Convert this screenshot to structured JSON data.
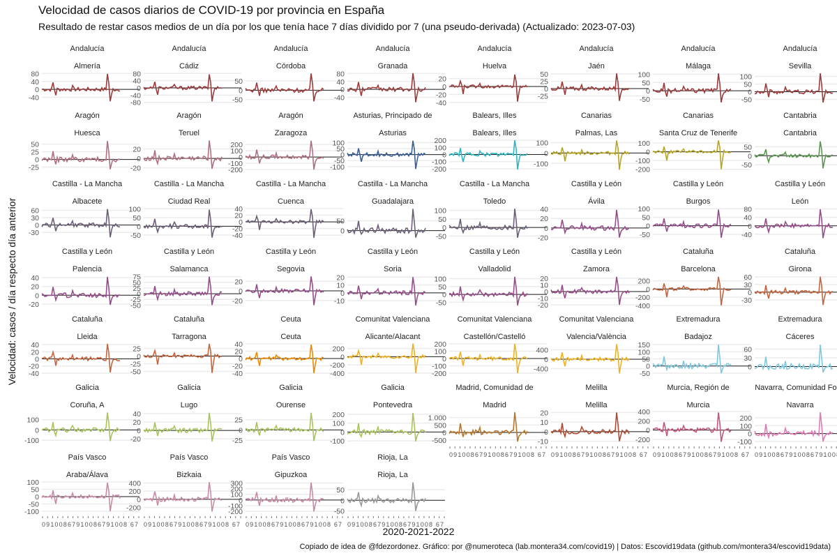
{
  "chart_data": {
    "type": "line",
    "title": "Velocidad de casos diarios de COVID-19 por provincia en España",
    "subtitle": "Resultado de restar casos medios de un día por los que tenía hace 7 días dividido por 7 (una pseudo-derivada) (Actualizado: 2023-07-03)",
    "xlabel": "2020-2021-2022",
    "ylabel": "Velocidad: casos / día respecto día anterior",
    "caption": "Copiado de idea de @fdezordonez. Gráfico: por @numeroteca (lab.montera34.com/covid19) | Datos: Escovid19data (github.com/montera34/escovid19data)",
    "x_tick_text": "09100867910086791008 67",
    "grid": true,
    "legend": "none",
    "panels": [
      {
        "region": "Andalucía",
        "province": "Almería",
        "color": "#9e3a3a",
        "yticks": [
          "80",
          "40",
          "0",
          "-40"
        ],
        "ylim": [
          -70,
          85
        ],
        "peak": 78,
        "trough": -60
      },
      {
        "region": "Andalucía",
        "province": "Cádiz",
        "color": "#9e3a3a",
        "yticks": [
          "80",
          "40",
          "0",
          "-40",
          "-80"
        ],
        "ylim": [
          -85,
          85
        ],
        "peak": 75,
        "trough": -75
      },
      {
        "region": "Andalucía",
        "province": "Córdoba",
        "color": "#9e3a3a",
        "yticks": [
          "50",
          "0",
          "-50"
        ],
        "ylim": [
          -70,
          95
        ],
        "peak": 90,
        "trough": -60
      },
      {
        "region": "Andalucía",
        "province": "Granada",
        "color": "#9e3a3a",
        "yticks": [
          "80",
          "40",
          "0",
          "-40"
        ],
        "ylim": [
          -70,
          85
        ],
        "peak": 82,
        "trough": -65
      },
      {
        "region": "Andalucía",
        "province": "Huelva",
        "color": "#9e3a3a",
        "yticks": [
          "20",
          "0",
          "-20",
          "-40"
        ],
        "ylim": [
          -42,
          35
        ],
        "peak": 30,
        "trough": -38
      },
      {
        "region": "Andalucía",
        "province": "Jaén",
        "color": "#9e3a3a",
        "yticks": [
          "50",
          "25",
          "0",
          "-25"
        ],
        "ylim": [
          -50,
          55
        ],
        "peak": 52,
        "trough": -42
      },
      {
        "region": "Andalucía",
        "province": "Málaga",
        "color": "#9e3a3a",
        "yticks": [
          "100",
          "50",
          "0",
          "-50"
        ],
        "ylim": [
          -75,
          110
        ],
        "peak": 105,
        "trough": -70
      },
      {
        "region": "Andalucía",
        "province": "Sevilla",
        "color": "#9e3a3a",
        "yticks": [
          "100",
          "50",
          "0",
          "-50"
        ],
        "ylim": [
          -75,
          125
        ],
        "peak": 120,
        "trough": -70
      },
      {
        "region": "Aragón",
        "province": "Huesca",
        "color": "#b07080",
        "yticks": [
          "50",
          "25",
          "0",
          "-25"
        ],
        "ylim": [
          -35,
          65
        ],
        "peak": 60,
        "trough": -32
      },
      {
        "region": "Aragón",
        "province": "Teruel",
        "color": "#b07080",
        "yticks": [
          "20",
          "0",
          "-20"
        ],
        "ylim": [
          -25,
          40
        ],
        "peak": 38,
        "trough": -22
      },
      {
        "region": "Aragón",
        "province": "Zaragoza",
        "color": "#b07080",
        "yticks": [
          "200",
          "100",
          "0",
          "-100",
          "-200"
        ],
        "ylim": [
          -210,
          280
        ],
        "peak": 260,
        "trough": -200
      },
      {
        "region": "Asturias, Principado de",
        "province": "Asturias",
        "color": "#3a5f99",
        "yticks": [
          "100",
          "50",
          "0",
          "-50",
          "-100"
        ],
        "ylim": [
          -130,
          125
        ],
        "peak": 115,
        "trough": -120
      },
      {
        "region": "Balears, Illes",
        "province": "Balears, Illes",
        "color": "#2bb8c4",
        "yticks": [
          "200",
          "100",
          "0",
          "-100",
          "-200"
        ],
        "ylim": [
          -220,
          210
        ],
        "peak": 200,
        "trough": -210
      },
      {
        "region": "Canarias",
        "province": "Palmas, Las",
        "color": "#b8a61e",
        "yticks": [
          "100",
          "0",
          "-100"
        ],
        "ylim": [
          -165,
          130
        ],
        "peak": 120,
        "trough": -160
      },
      {
        "region": "Canarias",
        "province": "Santa Cruz de Tenerife",
        "color": "#b8a61e",
        "yticks": [
          "100",
          "0",
          "-100",
          "-200"
        ],
        "ylim": [
          -210,
          140
        ],
        "peak": 130,
        "trough": -200
      },
      {
        "region": "Cantabria",
        "province": "Cantabria",
        "color": "#5a9650",
        "yticks": [
          "50",
          "0",
          "-50"
        ],
        "ylim": [
          -80,
          90
        ],
        "peak": 80,
        "trough": -70
      },
      {
        "region": "Castilla - La Mancha",
        "province": "Albacete",
        "color": "#6e5f78",
        "yticks": [
          "60",
          "30",
          "0",
          "-30"
        ],
        "ylim": [
          -55,
          70
        ],
        "peak": 65,
        "trough": -50
      },
      {
        "region": "Castilla - La Mancha",
        "province": "Ciudad Real",
        "color": "#6e5f78",
        "yticks": [
          "100",
          "50",
          "0",
          "-50"
        ],
        "ylim": [
          -70,
          105
        ],
        "peak": 95,
        "trough": -65
      },
      {
        "region": "Castilla - La Mancha",
        "province": "Cuenca",
        "color": "#6e5f78",
        "yticks": [
          "40",
          "20",
          "0",
          "-20",
          "-40"
        ],
        "ylim": [
          -50,
          42
        ],
        "peak": 38,
        "trough": -48
      },
      {
        "region": "Castilla - La Mancha",
        "province": "Guadalajara",
        "color": "#6e5f78",
        "yticks": [
          "50",
          "0"
        ],
        "ylim": [
          -40,
          115
        ],
        "peak": 110,
        "trough": -35
      },
      {
        "region": "Castilla - La Mancha",
        "province": "Toledo",
        "color": "#6e5f78",
        "yticks": [
          "100",
          "50",
          "0",
          "-50"
        ],
        "ylim": [
          -65,
          115
        ],
        "peak": 110,
        "trough": -60
      },
      {
        "region": "Castilla y León",
        "province": "Ávila",
        "color": "#994c8c",
        "yticks": [
          "40",
          "20",
          "0",
          "-20"
        ],
        "ylim": [
          -22,
          42
        ],
        "peak": 38,
        "trough": -20
      },
      {
        "region": "Castilla y León",
        "province": "Burgos",
        "color": "#994c8c",
        "yticks": [
          "100",
          "50",
          "0",
          "-50"
        ],
        "ylim": [
          -75,
          105
        ],
        "peak": 95,
        "trough": -70
      },
      {
        "region": "Castilla y León",
        "province": "León",
        "color": "#994c8c",
        "yticks": [
          "80",
          "40",
          "0",
          "-40"
        ],
        "ylim": [
          -60,
          85
        ],
        "peak": 78,
        "trough": -58
      },
      {
        "region": "Castilla y León",
        "province": "Palencia",
        "color": "#994c8c",
        "yticks": [
          "40",
          "20",
          "0",
          "-20"
        ],
        "ylim": [
          -25,
          45
        ],
        "peak": 42,
        "trough": -22
      },
      {
        "region": "Castilla y León",
        "province": "Salamanca",
        "color": "#994c8c",
        "yticks": [
          "75",
          "50",
          "25",
          "0",
          "-25",
          "-50"
        ],
        "ylim": [
          -55,
          80
        ],
        "peak": 75,
        "trough": -50
      },
      {
        "region": "Castilla y León",
        "province": "Segovia",
        "color": "#994c8c",
        "yticks": [
          "20",
          "0",
          "-20"
        ],
        "ylim": [
          -32,
          32
        ],
        "peak": 30,
        "trough": -30
      },
      {
        "region": "Castilla y León",
        "province": "Soria",
        "color": "#994c8c",
        "yticks": [
          "20",
          "10",
          "0",
          "-10"
        ],
        "ylim": [
          -17,
          22
        ],
        "peak": 20,
        "trough": -16
      },
      {
        "region": "Castilla y León",
        "province": "Valladolid",
        "color": "#994c8c",
        "yticks": [
          "100",
          "50",
          "0",
          "-50"
        ],
        "ylim": [
          -75,
          120
        ],
        "peak": 112,
        "trough": -70
      },
      {
        "region": "Castilla y León",
        "province": "Zamora",
        "color": "#994c8c",
        "yticks": [
          "20",
          "10",
          "0",
          "-10",
          "-20"
        ],
        "ylim": [
          -22,
          24
        ],
        "peak": 22,
        "trough": -20
      },
      {
        "region": "Cataluña",
        "province": "Barcelona",
        "color": "#c8643c",
        "yticks": [
          "200",
          "0",
          "-200",
          "-400"
        ],
        "ylim": [
          -420,
          330
        ],
        "peak": 300,
        "trough": -400
      },
      {
        "region": "Cataluña",
        "province": "Girona",
        "color": "#c8643c",
        "yticks": [
          "60",
          "30",
          "0",
          "-30"
        ],
        "ylim": [
          -55,
          65
        ],
        "peak": 60,
        "trough": -50
      },
      {
        "region": "Cataluña",
        "province": "Lleida",
        "color": "#c8643c",
        "yticks": [
          "40",
          "20",
          "0",
          "-20",
          "-40"
        ],
        "ylim": [
          -42,
          44
        ],
        "peak": 42,
        "trough": -38
      },
      {
        "region": "Cataluña",
        "province": "Tarragona",
        "color": "#c8643c",
        "yticks": [
          "25",
          "0",
          "-25",
          "-50"
        ],
        "ylim": [
          -58,
          42
        ],
        "peak": 40,
        "trough": -55
      },
      {
        "region": "Ceuta",
        "province": "Ceuta",
        "color": "#ee8a00",
        "yticks": [
          "40",
          "20",
          "0",
          "-20",
          "-40"
        ],
        "ylim": [
          -42,
          42
        ],
        "peak": 38,
        "trough": -40
      },
      {
        "region": "Comunitat Valenciana",
        "province": "Alicante/Alacant",
        "color": "#f0b21e",
        "yticks": [
          "200",
          "0",
          "-200",
          "-400"
        ],
        "ylim": [
          -420,
          330
        ],
        "peak": 320,
        "trough": -400
      },
      {
        "region": "Comunitat Valenciana",
        "province": "Castellón/Castelló",
        "color": "#f0b21e",
        "yticks": [
          "200",
          "100",
          "0",
          "-100",
          "-200"
        ],
        "ylim": [
          -210,
          210
        ],
        "peak": 200,
        "trough": -200
      },
      {
        "region": "Comunitat Valenciana",
        "province": "Valencia/València",
        "color": "#f0b21e",
        "yticks": [
          "400",
          "0",
          "-400"
        ],
        "ylim": [
          -620,
          680
        ],
        "peak": 640,
        "trough": -600
      },
      {
        "region": "Extremadura",
        "province": "Badajoz",
        "color": "#7ec8e0",
        "yticks": [
          "150",
          "100",
          "50",
          "0",
          "-50"
        ],
        "ylim": [
          -55,
          160
        ],
        "peak": 150,
        "trough": -50
      },
      {
        "region": "Extremadura",
        "province": "Cáceres",
        "color": "#7ec8e0",
        "yticks": [
          "60",
          "30",
          "0"
        ],
        "ylim": [
          -25,
          80
        ],
        "peak": 75,
        "trough": -20
      },
      {
        "region": "Galicia",
        "province": "Coruña, A",
        "color": "#a8c45a",
        "yticks": [
          "100",
          "0",
          "-100"
        ],
        "ylim": [
          -120,
          180
        ],
        "peak": 170,
        "trough": -110
      },
      {
        "region": "Galicia",
        "province": "Lugo",
        "color": "#a8c45a",
        "yticks": [
          "40",
          "20",
          "0",
          "-20"
        ],
        "ylim": [
          -28,
          45
        ],
        "peak": 42,
        "trough": -26
      },
      {
        "region": "Galicia",
        "province": "Ourense",
        "color": "#a8c45a",
        "yticks": [
          "25",
          "0",
          "-25"
        ],
        "ylim": [
          -30,
          45
        ],
        "peak": 42,
        "trough": -27
      },
      {
        "region": "Galicia",
        "province": "Pontevedra",
        "color": "#a8c45a",
        "yticks": [
          "200",
          "100",
          "0",
          "-100"
        ],
        "ylim": [
          -115,
          230
        ],
        "peak": 215,
        "trough": -105
      },
      {
        "region": "Madrid, Comunidad de",
        "province": "Madrid",
        "color": "#b8762a",
        "yticks": [
          "1.000",
          "500",
          "0",
          "-500"
        ],
        "ylim": [
          -650,
          1400
        ],
        "peak": 1350,
        "trough": -600
      },
      {
        "region": "Melilla",
        "province": "Melilla",
        "color": "#b04a30",
        "yticks": [
          "20",
          "10",
          "0",
          "-10"
        ],
        "ylim": [
          -11,
          21
        ],
        "peak": 20,
        "trough": -10
      },
      {
        "region": "Murcia, Región de",
        "province": "Murcia",
        "color": "#c8567a",
        "yticks": [
          "400",
          "200",
          "0",
          "-200"
        ],
        "ylim": [
          -260,
          400
        ],
        "peak": 380,
        "trough": -250
      },
      {
        "region": "Navarra, Comunidad Foral",
        "province": "Navarra",
        "color": "#e07ab4",
        "yticks": [
          "200",
          "100",
          "0",
          "-100"
        ],
        "ylim": [
          -110,
          280
        ],
        "peak": 270,
        "trough": -100
      },
      {
        "region": "País Vasco",
        "province": "Araba/Álava",
        "color": "#c98aa8",
        "yticks": [
          "100",
          "50",
          "0",
          "-50",
          "-100"
        ],
        "ylim": [
          -105,
          105
        ],
        "peak": 95,
        "trough": -100
      },
      {
        "region": "País Vasco",
        "province": "Bizkaia",
        "color": "#c98aa8",
        "yticks": [
          "400",
          "200",
          "0",
          "-200"
        ],
        "ylim": [
          -310,
          440
        ],
        "peak": 420,
        "trough": -300
      },
      {
        "region": "País Vasco",
        "province": "Gipuzkoa",
        "color": "#c98aa8",
        "yticks": [
          "300",
          "200",
          "100",
          "0",
          "-100",
          "-200"
        ],
        "ylim": [
          -210,
          330
        ],
        "peak": 310,
        "trough": -200
      },
      {
        "region": "Rioja, La",
        "province": "Rioja, La",
        "color": "#999999",
        "yticks": [
          "50",
          "0",
          "-50"
        ],
        "ylim": [
          -55,
          90
        ],
        "peak": 85,
        "trough": -50
      }
    ]
  }
}
